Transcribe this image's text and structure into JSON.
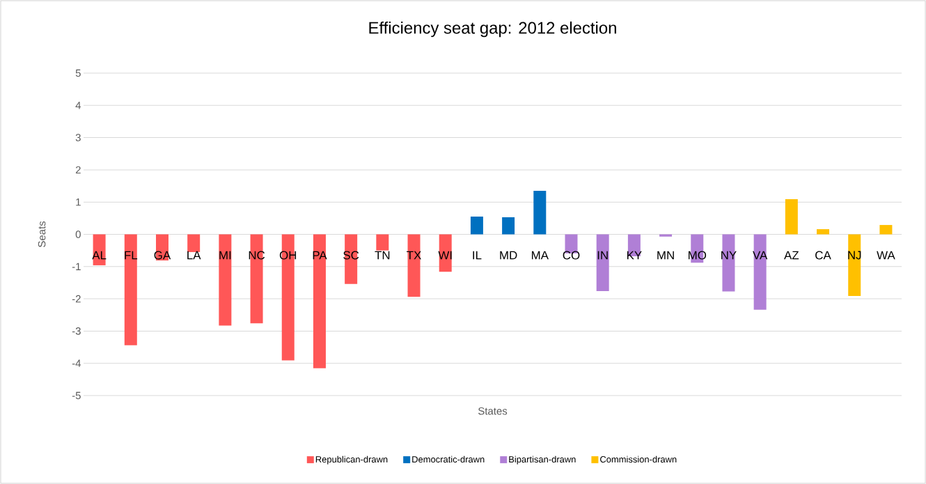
{
  "chart_data": {
    "type": "bar",
    "title": "Efficiency seat gap: 2012 election",
    "xlabel": "States",
    "ylabel": "Seats",
    "categories": [
      "AL",
      "FL",
      "GA",
      "LA",
      "MI",
      "NC",
      "OH",
      "PA",
      "SC",
      "TN",
      "TX",
      "WI",
      "IL",
      "MD",
      "MA",
      "CO",
      "IN",
      "KY",
      "MN",
      "MO",
      "NY",
      "VA",
      "AZ",
      "CA",
      "NJ",
      "WA"
    ],
    "series": [
      {
        "name": "Republican-drawn",
        "color": "#ff5757",
        "values": [
          -0.96,
          -3.44,
          -0.81,
          -0.55,
          -2.83,
          -2.76,
          -3.91,
          -4.15,
          -1.54,
          -0.5,
          -1.94,
          -1.16,
          null,
          null,
          null,
          null,
          null,
          null,
          null,
          null,
          null,
          null,
          null,
          null,
          null,
          null
        ]
      },
      {
        "name": "Democratic-drawn",
        "color": "#0070c0",
        "values": [
          null,
          null,
          null,
          null,
          null,
          null,
          null,
          null,
          null,
          null,
          null,
          null,
          0.55,
          0.53,
          1.35,
          null,
          null,
          null,
          null,
          null,
          null,
          null,
          null,
          null,
          null,
          null
        ]
      },
      {
        "name": "Bipartisan-drawn",
        "color": "#b07fd6",
        "values": [
          null,
          null,
          null,
          null,
          null,
          null,
          null,
          null,
          null,
          null,
          null,
          null,
          null,
          null,
          null,
          -0.59,
          -1.76,
          -0.68,
          -0.07,
          -0.88,
          -1.77,
          -2.34,
          null,
          null,
          null,
          null
        ]
      },
      {
        "name": "Commission-drawn",
        "color": "#ffc000",
        "values": [
          null,
          null,
          null,
          null,
          null,
          null,
          null,
          null,
          null,
          null,
          null,
          null,
          null,
          null,
          null,
          null,
          null,
          null,
          null,
          null,
          null,
          null,
          1.09,
          0.16,
          -1.91,
          0.29
        ]
      }
    ],
    "ylim": [
      -5,
      5
    ],
    "yticks": [
      -5,
      -4,
      -3,
      -2,
      -1,
      0,
      1,
      2,
      3,
      4,
      5
    ],
    "grid": true,
    "legend": "bottom"
  }
}
